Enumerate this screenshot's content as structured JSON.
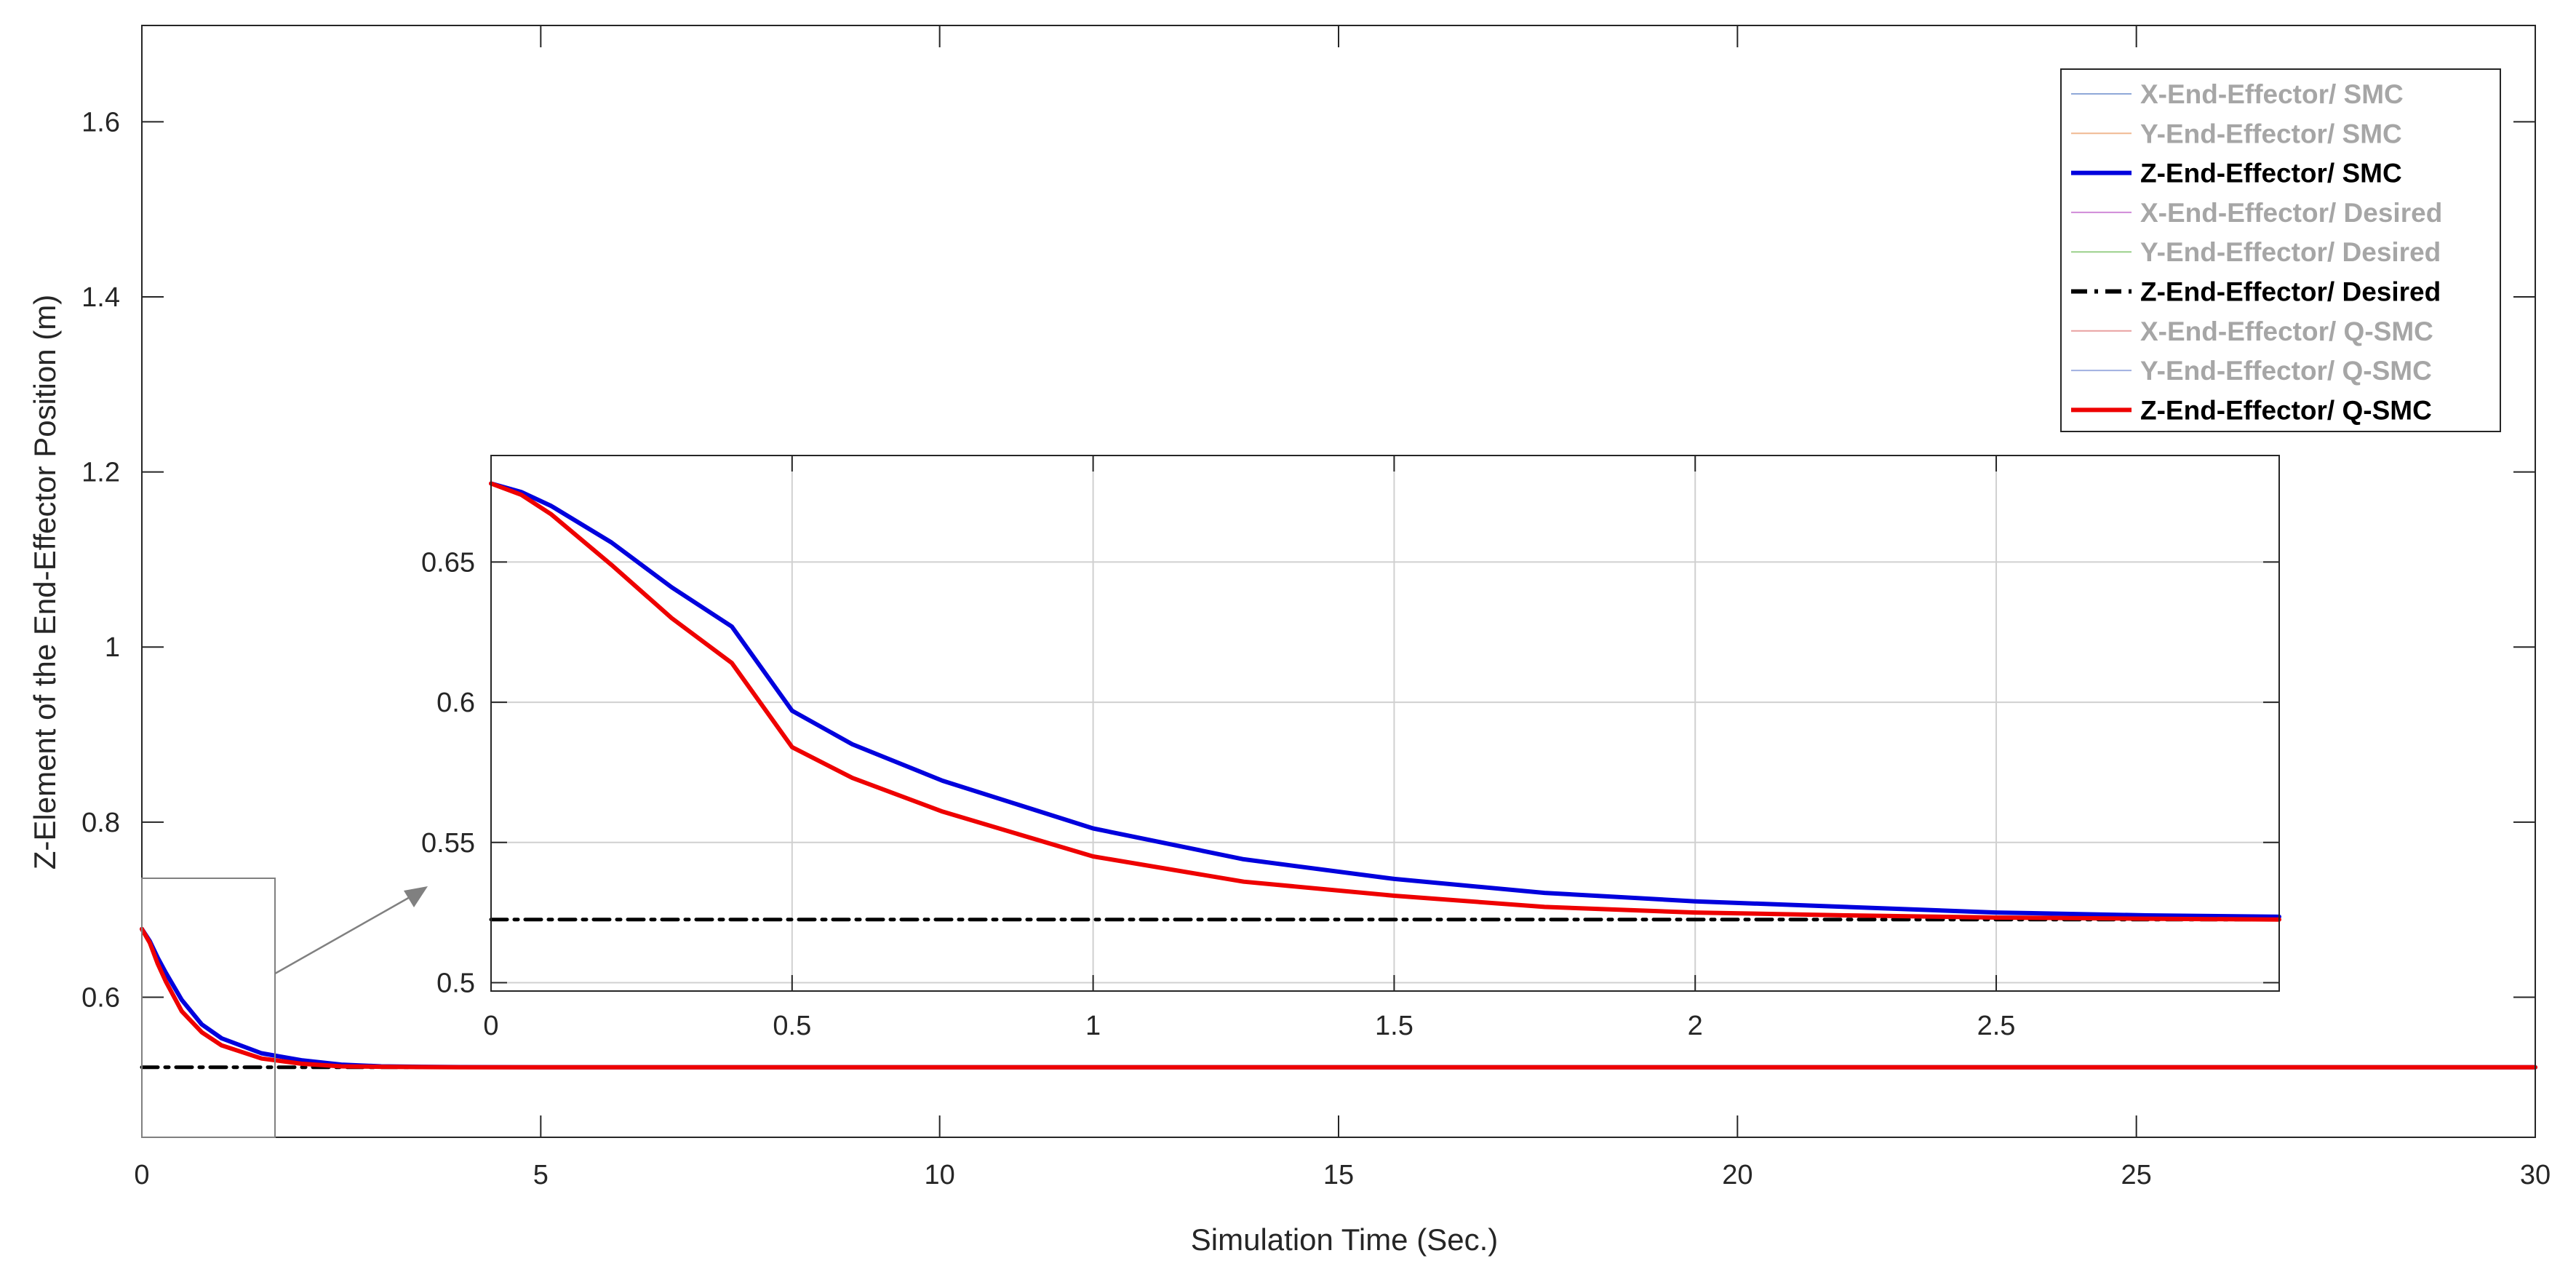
{
  "chart_data": [
    {
      "type": "line",
      "xlabel": "Simulation Time (Sec.)",
      "ylabel": "Z-Element of the End-Effector Position (m)",
      "xlim": [
        0,
        30
      ],
      "ylim": [
        0.44,
        1.71
      ],
      "xticks": [
        "0",
        "5",
        "10",
        "15",
        "20",
        "25",
        "30"
      ],
      "yticks": [
        "0.6",
        "0.8",
        "1",
        "1.2",
        "1.4",
        "1.6"
      ],
      "grid": false,
      "legend_position": "top-right",
      "legend": [
        {
          "label": "X-End-Effector/ SMC",
          "color": "#8fa8d8",
          "style": "solid",
          "dimmed": true
        },
        {
          "label": "Y-End-Effector/ SMC",
          "color": "#f0b890",
          "style": "solid",
          "dimmed": true
        },
        {
          "label": "Z-End-Effector/ SMC",
          "color": "#0000dd",
          "style": "solid",
          "dimmed": false
        },
        {
          "label": "X-End-Effector/ Desired",
          "color": "#d08ad8",
          "style": "solid",
          "dimmed": true
        },
        {
          "label": "Y-End-Effector/ Desired",
          "color": "#9ad08a",
          "style": "solid",
          "dimmed": true
        },
        {
          "label": "Z-End-Effector/ Desired",
          "color": "#000000",
          "style": "dashdot",
          "dimmed": false
        },
        {
          "label": "X-End-Effector/ Q-SMC",
          "color": "#e8a0a0",
          "style": "solid",
          "dimmed": true
        },
        {
          "label": "Y-End-Effector/ Q-SMC",
          "color": "#a0b0e0",
          "style": "solid",
          "dimmed": true
        },
        {
          "label": "Z-End-Effector/ Q-SMC",
          "color": "#ee0000",
          "style": "solid",
          "dimmed": false
        }
      ],
      "series": [
        {
          "name": "Z-End-Effector/ SMC",
          "color": "#0000dd",
          "x": [
            0,
            0.1,
            0.2,
            0.3,
            0.5,
            0.75,
            1,
            1.5,
            2,
            2.5,
            3,
            3.5,
            4,
            5,
            6,
            8,
            10,
            15,
            20,
            25,
            30
          ],
          "y": [
            0.678,
            0.664,
            0.645,
            0.628,
            0.597,
            0.569,
            0.553,
            0.536,
            0.528,
            0.523,
            0.521,
            0.5205,
            0.5202,
            0.52,
            0.52,
            0.52,
            0.52,
            0.52,
            0.52,
            0.52,
            0.52
          ]
        },
        {
          "name": "Z-End-Effector/ Desired",
          "color": "#000000",
          "x": [
            0,
            30
          ],
          "y": [
            0.52,
            0.52
          ]
        },
        {
          "name": "Z-End-Effector/ Q-SMC",
          "color": "#ee0000",
          "x": [
            0,
            0.1,
            0.2,
            0.3,
            0.5,
            0.75,
            1,
            1.5,
            2,
            2.5,
            3,
            3.5,
            4,
            5,
            6,
            8,
            10,
            15,
            20,
            25,
            30
          ],
          "y": [
            0.678,
            0.662,
            0.638,
            0.618,
            0.584,
            0.56,
            0.545,
            0.53,
            0.524,
            0.521,
            0.5205,
            0.5202,
            0.52,
            0.52,
            0.52,
            0.52,
            0.52,
            0.52,
            0.52,
            0.52,
            0.52
          ]
        }
      ]
    },
    {
      "type": "line",
      "role": "inset-zoom",
      "xlim": [
        0,
        2.97
      ],
      "ylim": [
        0.497,
        0.688
      ],
      "xticks": [
        "0",
        "0.5",
        "1",
        "1.5",
        "2",
        "2.5"
      ],
      "yticks": [
        "0.5",
        "0.55",
        "0.6",
        "0.65"
      ],
      "grid": true,
      "series": [
        {
          "name": "Z-End-Effector/ SMC",
          "color": "#0000dd",
          "x": [
            0,
            0.05,
            0.1,
            0.2,
            0.3,
            0.4,
            0.5,
            0.6,
            0.75,
            1,
            1.25,
            1.5,
            1.75,
            2,
            2.25,
            2.5,
            2.75,
            2.97
          ],
          "y": [
            0.678,
            0.675,
            0.67,
            0.657,
            0.641,
            0.627,
            0.597,
            0.585,
            0.572,
            0.555,
            0.544,
            0.537,
            0.532,
            0.529,
            0.527,
            0.525,
            0.524,
            0.5235
          ]
        },
        {
          "name": "Z-End-Effector/ Desired",
          "color": "#000000",
          "x": [
            0,
            2.97
          ],
          "y": [
            0.5225,
            0.5225
          ]
        },
        {
          "name": "Z-End-Effector/ Q-SMC",
          "color": "#ee0000",
          "x": [
            0,
            0.05,
            0.1,
            0.2,
            0.3,
            0.4,
            0.5,
            0.6,
            0.75,
            1,
            1.25,
            1.5,
            1.75,
            2,
            2.25,
            2.5,
            2.75,
            2.97
          ],
          "y": [
            0.678,
            0.674,
            0.667,
            0.649,
            0.63,
            0.614,
            0.584,
            0.573,
            0.561,
            0.545,
            0.536,
            0.531,
            0.527,
            0.525,
            0.524,
            0.5232,
            0.5228,
            0.5225
          ]
        }
      ]
    }
  ]
}
